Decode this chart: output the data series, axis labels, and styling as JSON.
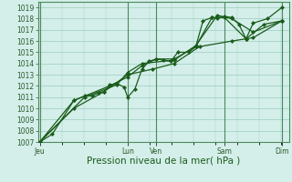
{
  "bg_color": "#d4eeea",
  "plot_bg_color": "#d4eeea",
  "grid_color": "#7bbba0",
  "line_color": "#1a5c1a",
  "marker_color": "#1a5c1a",
  "ylim": [
    1007,
    1019.5
  ],
  "yticks": [
    1007,
    1008,
    1009,
    1010,
    1011,
    1012,
    1013,
    1014,
    1015,
    1016,
    1017,
    1018,
    1019
  ],
  "xlabel": "Pression niveau de la mer( hPa )",
  "xlabel_fontsize": 7.5,
  "tick_fontsize": 5.5,
  "xlim": [
    0,
    7.0
  ],
  "xtick_positions": [
    0.05,
    2.5,
    3.3,
    5.2,
    6.8
  ],
  "xtick_labels": [
    "Jeu",
    "Lun",
    "Ven",
    "Sam",
    "Dim"
  ],
  "vlines": [
    0.05,
    2.5,
    3.3,
    5.2,
    6.8
  ],
  "line1": [
    [
      0.05,
      1007.0
    ],
    [
      0.4,
      1007.7
    ],
    [
      1.0,
      1010.7
    ],
    [
      1.3,
      1011.1
    ],
    [
      1.5,
      1011.1
    ],
    [
      1.7,
      1011.4
    ],
    [
      1.85,
      1011.5
    ],
    [
      2.0,
      1012.1
    ],
    [
      2.2,
      1012.2
    ],
    [
      2.4,
      1011.9
    ],
    [
      2.5,
      1011.0
    ],
    [
      2.7,
      1011.7
    ],
    [
      2.9,
      1013.5
    ],
    [
      3.1,
      1014.2
    ],
    [
      3.3,
      1014.4
    ],
    [
      3.5,
      1014.3
    ],
    [
      3.7,
      1014.2
    ],
    [
      3.9,
      1015.0
    ],
    [
      4.2,
      1015.0
    ],
    [
      4.4,
      1015.5
    ],
    [
      4.6,
      1017.8
    ],
    [
      4.85,
      1018.1
    ],
    [
      5.0,
      1018.05
    ],
    [
      5.2,
      1018.2
    ],
    [
      5.4,
      1018.1
    ],
    [
      5.6,
      1017.5
    ],
    [
      5.8,
      1016.2
    ],
    [
      6.0,
      1017.6
    ],
    [
      6.4,
      1018.0
    ],
    [
      6.8,
      1019.0
    ]
  ],
  "line2": [
    [
      0.05,
      1007.0
    ],
    [
      1.0,
      1010.7
    ],
    [
      2.0,
      1012.0
    ],
    [
      2.5,
      1012.8
    ],
    [
      2.9,
      1013.8
    ],
    [
      3.3,
      1014.4
    ],
    [
      3.8,
      1014.4
    ],
    [
      4.4,
      1015.5
    ],
    [
      4.85,
      1018.1
    ],
    [
      5.2,
      1018.1
    ],
    [
      5.8,
      1016.2
    ],
    [
      6.3,
      1017.5
    ],
    [
      6.8,
      1017.8
    ]
  ],
  "line3": [
    [
      0.05,
      1007.0
    ],
    [
      1.3,
      1011.0
    ],
    [
      2.2,
      1012.1
    ],
    [
      2.5,
      1013.2
    ],
    [
      2.9,
      1014.0
    ],
    [
      3.8,
      1014.3
    ],
    [
      4.4,
      1015.6
    ],
    [
      5.0,
      1018.3
    ],
    [
      5.4,
      1018.0
    ],
    [
      6.0,
      1016.8
    ],
    [
      6.8,
      1017.8
    ]
  ],
  "line4": [
    [
      0.05,
      1007.0
    ],
    [
      1.0,
      1010.0
    ],
    [
      1.85,
      1011.5
    ],
    [
      2.5,
      1013.0
    ],
    [
      3.2,
      1013.5
    ],
    [
      3.8,
      1014.0
    ],
    [
      4.5,
      1015.5
    ],
    [
      5.4,
      1016.0
    ],
    [
      6.0,
      1016.3
    ],
    [
      6.8,
      1017.8
    ]
  ]
}
